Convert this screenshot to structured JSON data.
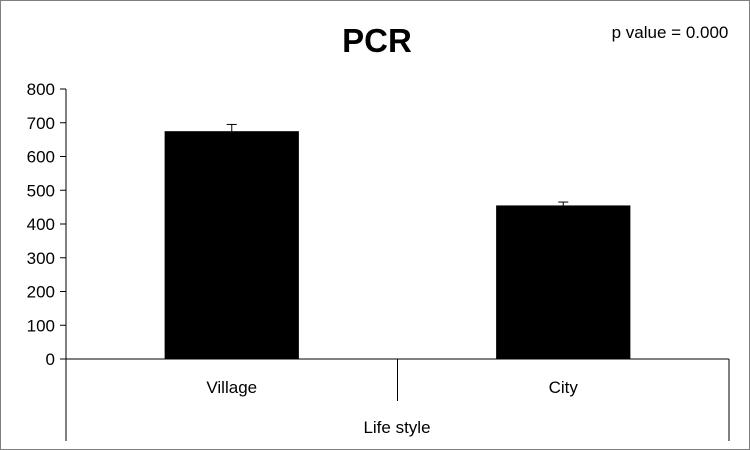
{
  "chart_data": {
    "type": "bar",
    "title": "PCR",
    "annotation": "p value = 0.000",
    "categories": [
      "Village",
      "City"
    ],
    "values": [
      675,
      455
    ],
    "error": [
      20,
      10
    ],
    "xlabel": "Life style",
    "ylabel": "",
    "ylim": [
      0,
      800
    ],
    "yticks": [
      0,
      100,
      200,
      300,
      400,
      500,
      600,
      700,
      800
    ],
    "grid": false,
    "legend": "none",
    "bar_color": "#000000"
  }
}
